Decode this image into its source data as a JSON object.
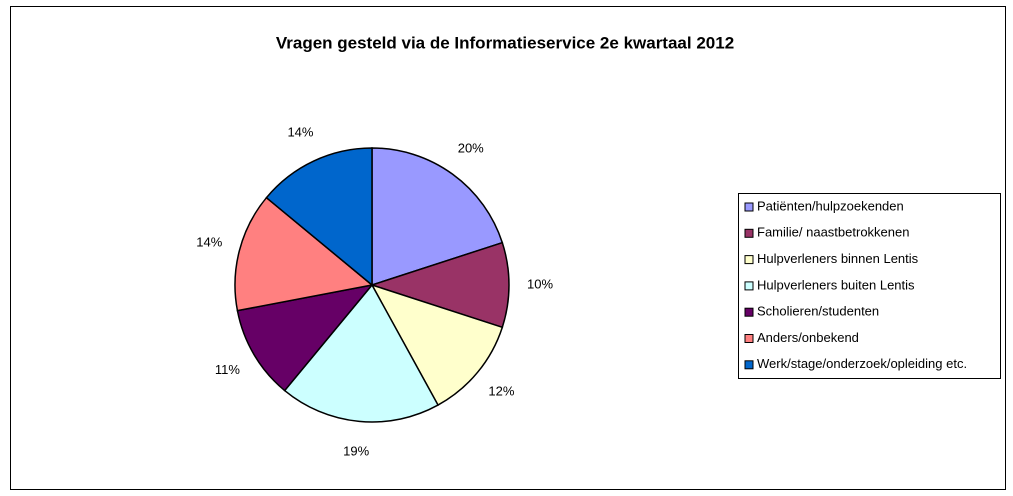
{
  "chart_data": {
    "type": "pie",
    "title": "Vragen gesteld via de Informatieservice 2e kwartaal 2012",
    "categories": [
      "Patiënten/hulpzoekenden",
      "Familie/ naastbetrokkenen",
      "Hulpverleners binnen Lentis",
      "Hulpverleners buiten Lentis",
      "Scholieren/studenten",
      "Anders/onbekend",
      "Werk/stage/onderzoek/opleiding etc."
    ],
    "values": [
      20,
      10,
      12,
      19,
      11,
      14,
      14
    ],
    "value_labels": [
      "20%",
      "10%",
      "12%",
      "19%",
      "11%",
      "14%",
      "14%"
    ],
    "colors": [
      "#9999ff",
      "#993366",
      "#ffffcc",
      "#ccffff",
      "#660066",
      "#ff8080",
      "#0066cc"
    ],
    "legend": "right"
  }
}
